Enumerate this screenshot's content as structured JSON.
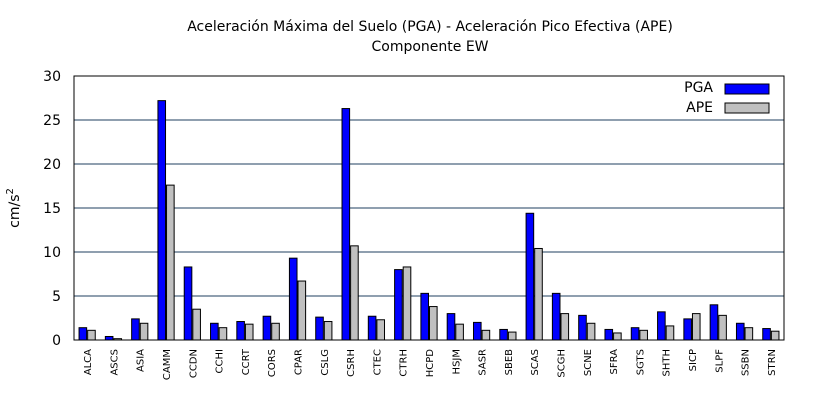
{
  "chart_data": {
    "type": "bar",
    "title_line1": "Aceleración Máxima del Suelo (PGA) -  Aceleración Pico Efectiva (APE)",
    "title_line2": "Componente EW",
    "ylabel_base": "cm/s",
    "ylabel_sup": "2",
    "ylim": [
      0,
      30
    ],
    "yticks": [
      0,
      5,
      10,
      15,
      20,
      25,
      30
    ],
    "grid": true,
    "legend_position": "top-right",
    "categories": [
      "ALCA",
      "ASCS",
      "ASIA",
      "CAMM",
      "CCDN",
      "CCHI",
      "CCRT",
      "CORS",
      "CPAR",
      "CSLG",
      "CSRH",
      "CTEC",
      "CTRH",
      "HCPD",
      "HSJM",
      "SASR",
      "SBEB",
      "SCAS",
      "SCGH",
      "SCNE",
      "SFRA",
      "SGTS",
      "SHTH",
      "SICP",
      "SLPF",
      "SSBN",
      "STRN"
    ],
    "series": [
      {
        "name": "PGA",
        "color": "#0000ff",
        "values": [
          1.4,
          0.4,
          2.4,
          27.2,
          8.3,
          1.9,
          2.1,
          2.7,
          9.3,
          2.6,
          26.3,
          2.7,
          8.0,
          5.3,
          3.0,
          2.0,
          1.2,
          14.4,
          5.3,
          2.8,
          1.2,
          1.4,
          3.2,
          2.4,
          4.0,
          1.9,
          1.3
        ]
      },
      {
        "name": "APE",
        "color": "#c0c0c0",
        "values": [
          1.1,
          0.15,
          1.9,
          17.6,
          3.5,
          1.4,
          1.8,
          1.9,
          6.7,
          2.1,
          10.7,
          2.3,
          8.3,
          3.8,
          1.8,
          1.1,
          0.9,
          10.4,
          3.0,
          1.9,
          0.8,
          1.1,
          1.6,
          3.0,
          2.8,
          1.4,
          1.0
        ]
      }
    ]
  }
}
